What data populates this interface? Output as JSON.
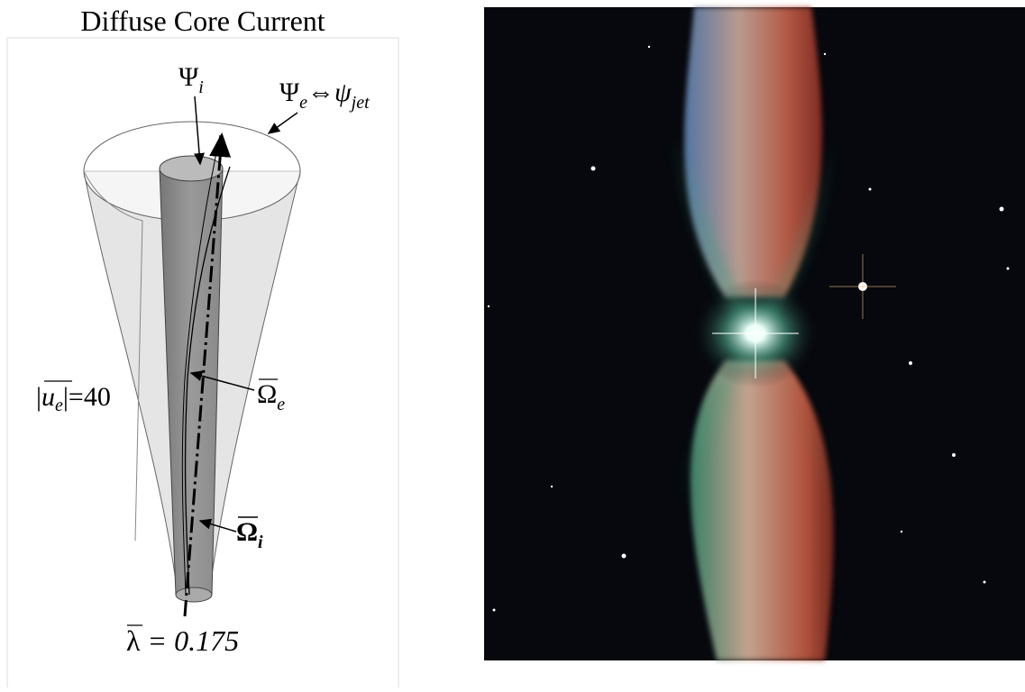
{
  "title": "Diffuse Core Current",
  "labels": {
    "psi_i": {
      "symbol": "Ψ",
      "subscript": "i"
    },
    "psi_e": {
      "left": {
        "symbol": "Ψ",
        "subscript": "e"
      },
      "relation": "⇔",
      "right": {
        "symbol": "ψ",
        "subscript": "jet"
      }
    },
    "u_e": {
      "prefix": "|",
      "symbol": "u",
      "subscript": "e",
      "suffix": "|=40"
    },
    "omega_e": {
      "symbol": "Ω",
      "subscript": "e"
    },
    "omega_i": {
      "symbol": "Ω",
      "subscript": "i"
    },
    "lambda": {
      "symbol": "λ",
      "rest": "= 0.175"
    }
  }
}
